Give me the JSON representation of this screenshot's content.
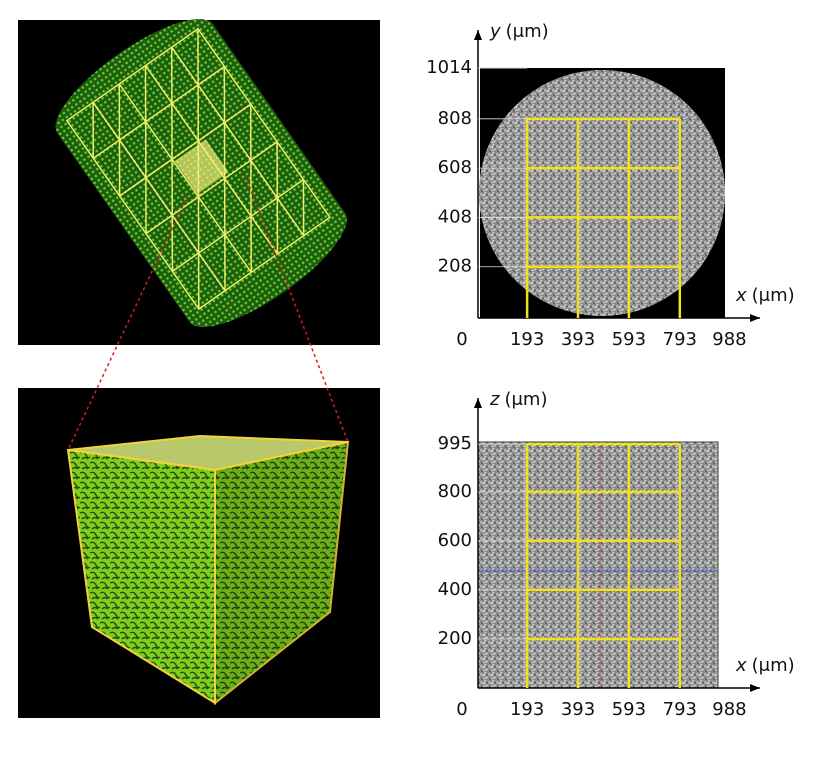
{
  "panels": [
    {
      "x_var": "x",
      "x_unit": "(μm)",
      "y_var": "y",
      "y_unit": "(μm)",
      "xticks": [
        0,
        193,
        393,
        593,
        793,
        988
      ],
      "yticks": [
        208,
        408,
        608,
        808,
        1014
      ]
    },
    {
      "x_var": "x",
      "x_unit": "(μm)",
      "y_var": "z",
      "y_unit": "(μm)",
      "xticks": [
        0,
        193,
        393,
        593,
        793,
        988
      ],
      "yticks": [
        200,
        400,
        600,
        800,
        995
      ]
    }
  ]
}
